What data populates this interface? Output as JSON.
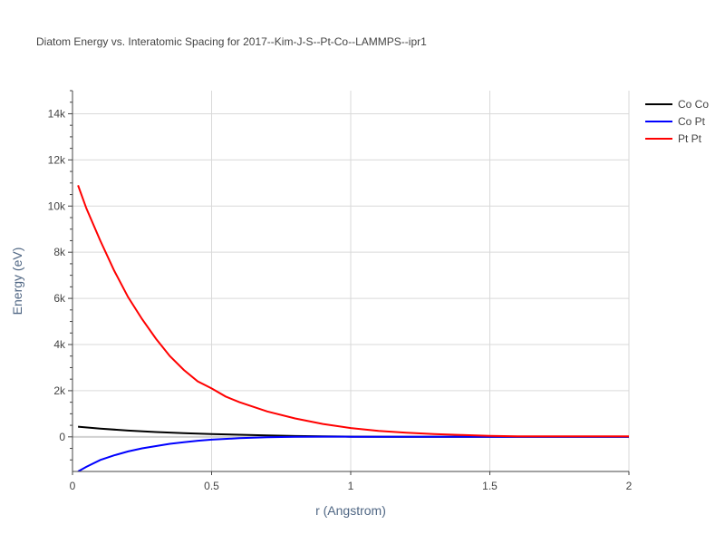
{
  "chart_data": {
    "type": "line",
    "title": "Diatom Energy vs. Interatomic Spacing for 2017--Kim-J-S--Pt-Co--LAMMPS--ipr1",
    "xlabel": "r (Angstrom)",
    "ylabel": "Energy (eV)",
    "xlim": [
      0,
      2
    ],
    "ylim": [
      -1500,
      15000
    ],
    "x_ticks": [
      {
        "value": 0,
        "label": "0"
      },
      {
        "value": 0.5,
        "label": "0.5"
      },
      {
        "value": 1,
        "label": "1"
      },
      {
        "value": 1.5,
        "label": "1.5"
      },
      {
        "value": 2,
        "label": "2"
      }
    ],
    "y_ticks": [
      {
        "value": 0,
        "label": "0"
      },
      {
        "value": 2000,
        "label": "2k"
      },
      {
        "value": 4000,
        "label": "4k"
      },
      {
        "value": 6000,
        "label": "6k"
      },
      {
        "value": 8000,
        "label": "8k"
      },
      {
        "value": 10000,
        "label": "10k"
      },
      {
        "value": 12000,
        "label": "12k"
      },
      {
        "value": 14000,
        "label": "14k"
      }
    ],
    "grid": true,
    "legend_position": "top-right",
    "series": [
      {
        "name": "Co Co",
        "color": "#000000",
        "x": [
          0.02,
          0.1,
          0.2,
          0.3,
          0.4,
          0.5,
          0.6,
          0.7,
          0.8,
          0.9,
          1.0,
          1.2,
          1.5,
          2.0
        ],
        "y": [
          440,
          360,
          270,
          210,
          160,
          120,
          90,
          60,
          35,
          20,
          10,
          5,
          0,
          0
        ]
      },
      {
        "name": "Co Pt",
        "color": "#0000ff",
        "x": [
          0.02,
          0.05,
          0.1,
          0.15,
          0.2,
          0.25,
          0.3,
          0.35,
          0.4,
          0.45,
          0.5,
          0.6,
          0.7,
          0.8,
          0.9,
          1.0,
          1.2,
          1.5,
          2.0
        ],
        "y": [
          -1500,
          -1300,
          -1000,
          -800,
          -630,
          -500,
          -400,
          -300,
          -230,
          -170,
          -120,
          -60,
          -20,
          0,
          10,
          5,
          0,
          0,
          0
        ]
      },
      {
        "name": "Pt Pt",
        "color": "#ff0000",
        "x": [
          0.02,
          0.05,
          0.1,
          0.15,
          0.2,
          0.25,
          0.3,
          0.35,
          0.4,
          0.45,
          0.5,
          0.55,
          0.6,
          0.7,
          0.8,
          0.9,
          1.0,
          1.1,
          1.2,
          1.3,
          1.4,
          1.5,
          1.6,
          1.8,
          2.0
        ],
        "y": [
          10900,
          9900,
          8500,
          7200,
          6050,
          5100,
          4250,
          3500,
          2900,
          2400,
          2100,
          1750,
          1500,
          1100,
          800,
          560,
          380,
          260,
          180,
          120,
          80,
          40,
          20,
          20,
          20
        ]
      }
    ]
  }
}
